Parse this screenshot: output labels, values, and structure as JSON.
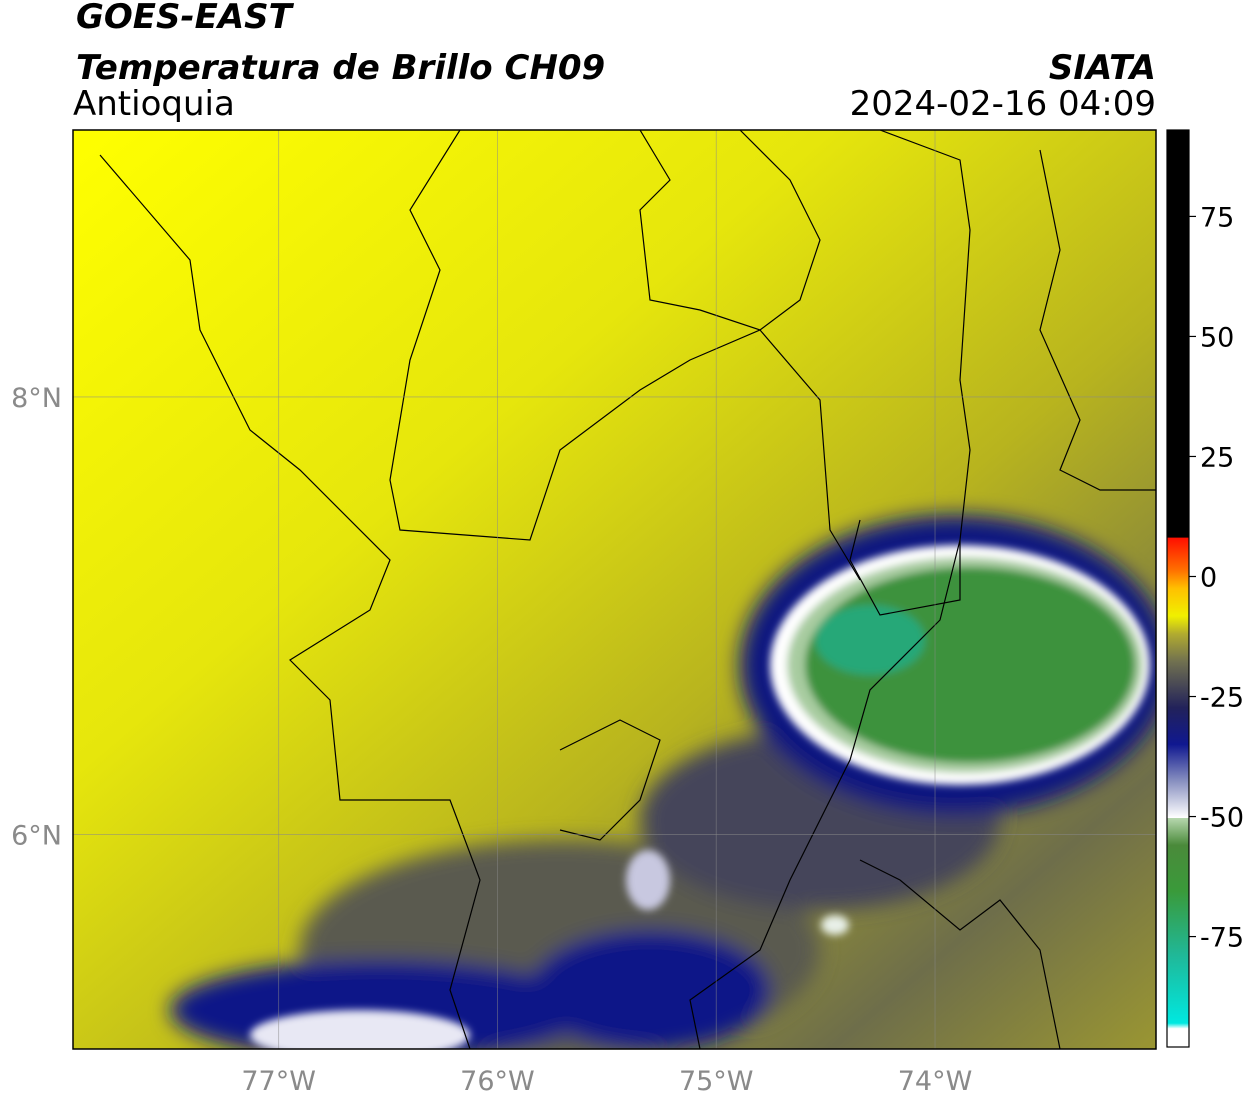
{
  "header": {
    "title": "GOES-EAST",
    "subtitle": "Temperatura de Brillo CH09",
    "region": "Antioquia",
    "source": "SIATA",
    "datetime": "2024-02-16 04:09"
  },
  "map": {
    "type": "map",
    "xlim": [
      -77.94,
      -72.99
    ],
    "ylim": [
      5.02,
      9.22
    ],
    "xticks": [
      {
        "value": -77,
        "label": "77°W"
      },
      {
        "value": -76,
        "label": "76°W"
      },
      {
        "value": -75,
        "label": "75°W"
      },
      {
        "value": -74,
        "label": "74°W"
      }
    ],
    "yticks": [
      {
        "value": 8,
        "label": "8°N"
      },
      {
        "value": 6,
        "label": "6°N"
      }
    ],
    "grid": true
  },
  "colorbar": {
    "ylim": [
      -98,
      93
    ],
    "yticks": [
      -75,
      -50,
      -25,
      0,
      25,
      50,
      75
    ]
  }
}
